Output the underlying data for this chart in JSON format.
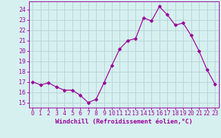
{
  "x": [
    0,
    1,
    2,
    3,
    4,
    5,
    6,
    7,
    8,
    9,
    10,
    11,
    12,
    13,
    14,
    15,
    16,
    17,
    18,
    19,
    20,
    21,
    22,
    23
  ],
  "y": [
    17.0,
    16.7,
    16.9,
    16.5,
    16.2,
    16.2,
    15.7,
    15.0,
    15.3,
    16.9,
    18.6,
    20.2,
    21.0,
    21.2,
    23.2,
    22.9,
    24.3,
    23.5,
    22.5,
    22.7,
    21.5,
    20.0,
    18.2,
    16.8
  ],
  "line_color": "#990099",
  "marker": "D",
  "marker_size": 2.5,
  "bg_color": "#d6f0f0",
  "grid_color": "#b8d4d4",
  "xlabel": "Windchill (Refroidissement éolien,°C)",
  "xlabel_fontsize": 6.5,
  "ylabel_ticks": [
    15,
    16,
    17,
    18,
    19,
    20,
    21,
    22,
    23,
    24
  ],
  "xtick_labels": [
    "0",
    "1",
    "2",
    "3",
    "4",
    "5",
    "6",
    "7",
    "8",
    "9",
    "10",
    "11",
    "12",
    "13",
    "14",
    "15",
    "16",
    "17",
    "18",
    "19",
    "20",
    "21",
    "22",
    "23"
  ],
  "ylim": [
    14.5,
    24.8
  ],
  "xlim": [
    -0.5,
    23.5
  ],
  "tick_fontsize": 6.0
}
